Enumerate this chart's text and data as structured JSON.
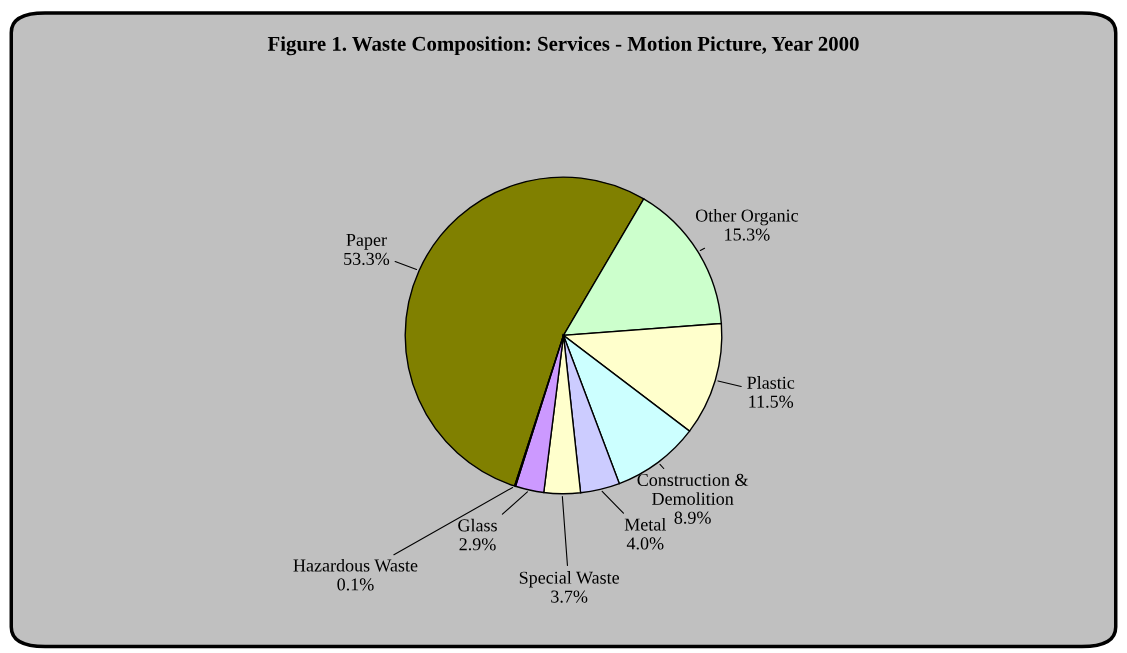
{
  "chart_data": {
    "type": "pie",
    "title": "Figure 1. Waste Composition: Services - Motion Picture, Year 2000",
    "categories": [
      "Paper",
      "Other Organic",
      "Plastic",
      "Construction &\nDemolition",
      "Metal",
      "Special Waste",
      "Glass",
      "Hazardous Waste"
    ],
    "values": [
      53.3,
      15.3,
      11.5,
      8.9,
      4.0,
      3.7,
      2.9,
      0.1
    ],
    "value_labels": [
      "53.3%",
      "15.3%",
      "11.5%",
      "8.9%",
      "4.0%",
      "3.7%",
      "2.9%",
      "0.1%"
    ],
    "colors": [
      "#808000",
      "#ccffcc",
      "#ffffcc",
      "#ccffff",
      "#ccccff",
      "#ffffcc",
      "#cc99ff",
      "#660066"
    ]
  }
}
